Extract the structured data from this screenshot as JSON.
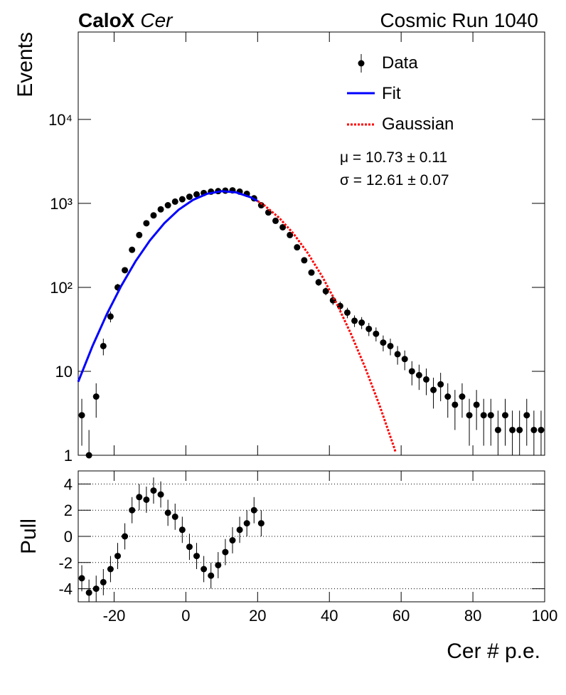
{
  "chart_data": [
    {
      "type": "errorbar",
      "title": "CaloX",
      "title_italic": "Cer",
      "run_label": "Cosmic Run 1040",
      "ylabel": "Events",
      "log_y": true,
      "xlim": [
        -30,
        100
      ],
      "ylim": [
        1,
        110000
      ],
      "xticks": [
        -20,
        0,
        20,
        40,
        60,
        80,
        100
      ],
      "yticks": [
        1,
        10,
        {
          "value": 100,
          "label": "10²"
        },
        {
          "value": 1000,
          "label": "10³"
        },
        {
          "value": 10000,
          "label": "10⁴"
        }
      ],
      "annotations": [
        "μ = 10.73 ± 0.11",
        "σ = 12.61 ± 0.07"
      ],
      "x": [
        -29,
        -27,
        -25,
        -23,
        -21,
        -19,
        -17,
        -15,
        -13,
        -11,
        -9,
        -7,
        -5,
        -3,
        -1,
        1,
        3,
        5,
        7,
        9,
        11,
        13,
        15,
        17,
        19,
        21,
        23,
        25,
        27,
        29,
        31,
        33,
        35,
        37,
        39,
        41,
        43,
        45,
        47,
        49,
        51,
        53,
        55,
        57,
        59,
        61,
        63,
        65,
        67,
        69,
        71,
        73,
        75,
        77,
        79,
        81,
        83,
        85,
        87,
        89,
        91,
        93,
        95,
        97,
        99
      ],
      "series": [
        {
          "name": "Data",
          "color": "#000000",
          "values": [
            3,
            1,
            5,
            20,
            45,
            100,
            160,
            280,
            420,
            580,
            720,
            850,
            950,
            1050,
            1120,
            1200,
            1280,
            1330,
            1380,
            1400,
            1420,
            1430,
            1380,
            1300,
            1150,
            950,
            780,
            620,
            520,
            420,
            300,
            210,
            150,
            115,
            90,
            70,
            60,
            50,
            40,
            38,
            32,
            28,
            22,
            20,
            16,
            14,
            10,
            9,
            8,
            6,
            7,
            5,
            4,
            5,
            3,
            4,
            3,
            3,
            2,
            3,
            2,
            2,
            3,
            2,
            2
          ],
          "errors": [
            1.7,
            1,
            2.2,
            4.5,
            6.7,
            10,
            12.6,
            16.7,
            20.5,
            24.1,
            26.8,
            29.2,
            30.8,
            32.4,
            33.5,
            34.6,
            35.8,
            36.5,
            37.1,
            37.4,
            37.7,
            37.8,
            37.1,
            36.1,
            33.9,
            30.8,
            27.9,
            24.9,
            22.8,
            20.5,
            17.3,
            14.5,
            12.2,
            10.7,
            9.5,
            8.4,
            7.7,
            7.1,
            6.3,
            6.2,
            5.7,
            5.3,
            4.7,
            4.5,
            4,
            3.7,
            3.2,
            3,
            2.8,
            2.4,
            2.6,
            2.2,
            2,
            2.2,
            1.7,
            2,
            1.7,
            1.7,
            1.4,
            1.7,
            1.4,
            1.4,
            1.7,
            1.4,
            1.4
          ]
        },
        {
          "name": "Fit",
          "color": "#0000ff",
          "x": [
            -30,
            -26,
            -22,
            -18,
            -14,
            -10,
            -6,
            -2,
            2,
            6,
            10,
            14,
            18,
            20
          ],
          "values": [
            7.5,
            20.1,
            48.3,
            104.5,
            204.7,
            362.7,
            580.7,
            841,
            1102,
            1305,
            1398,
            1354,
            1186,
            1068
          ]
        },
        {
          "name": "Gaussian",
          "color": "#ff0000",
          "x": [
            20,
            22,
            26,
            30,
            34,
            38,
            42,
            46,
            50,
            54,
            58,
            58.5
          ],
          "values": [
            1068,
            939,
            673,
            436,
            255,
            135,
            64.7,
            28,
            11,
            3.9,
            1.25,
            1.07
          ]
        }
      ]
    },
    {
      "type": "errorbar",
      "ylabel": "Pull",
      "xlabel": "Cer # p.e.",
      "log_y": false,
      "grid": true,
      "xlim": [
        -30,
        100
      ],
      "ylim": [
        -5,
        5
      ],
      "xticks": [
        -20,
        0,
        20,
        40,
        60,
        80,
        100
      ],
      "yticks": [
        -4,
        -2,
        0,
        2,
        4
      ],
      "x": [
        -29,
        -27,
        -25,
        -23,
        -21,
        -19,
        -17,
        -15,
        -13,
        -11,
        -9,
        -7,
        -5,
        -3,
        -1,
        1,
        3,
        5,
        7,
        9,
        11,
        13,
        15,
        17,
        19,
        21
      ],
      "series": [
        {
          "color": "#000000",
          "values": [
            -3.2,
            -4.3,
            -4,
            -3.5,
            -2.5,
            -1.5,
            0,
            2,
            3,
            2.8,
            3.5,
            3.2,
            1.8,
            1.5,
            0.5,
            -0.8,
            -1.5,
            -2.5,
            -3,
            -2.2,
            -1.2,
            -0.3,
            0.5,
            1,
            2,
            1
          ],
          "errors": [
            1,
            1,
            1,
            1,
            1,
            1,
            1,
            1,
            1,
            1,
            1,
            1,
            1,
            1,
            1,
            1,
            1,
            1,
            1,
            1,
            1,
            1,
            1,
            1,
            1,
            1
          ]
        }
      ]
    }
  ]
}
